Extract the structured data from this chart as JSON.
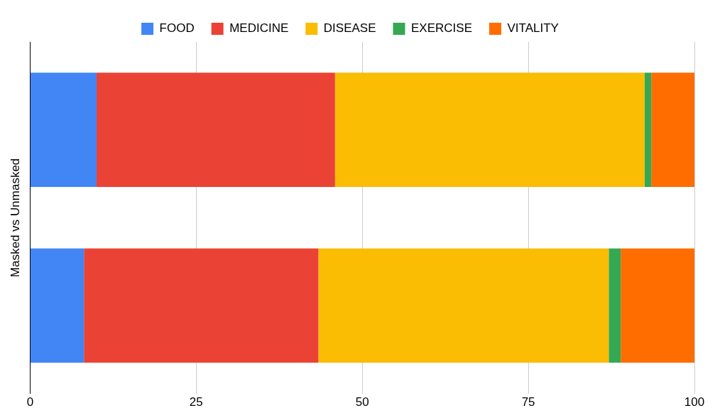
{
  "chart_data": {
    "type": "bar",
    "orientation": "horizontal",
    "stacked": true,
    "ylabel": "Masked vs Unmasked",
    "categories": [
      null,
      null
    ],
    "series": [
      {
        "name": "FOOD",
        "color": "#4285f4",
        "values": [
          10.0,
          8.1
        ]
      },
      {
        "name": "MEDICINE",
        "color": "#ea4335",
        "values": [
          35.9,
          35.3
        ]
      },
      {
        "name": "DISEASE",
        "color": "#fbbc04",
        "values": [
          46.6,
          43.7
        ]
      },
      {
        "name": "EXERCISE",
        "color": "#34a853",
        "values": [
          1.0,
          1.8
        ]
      },
      {
        "name": "VITALITY",
        "color": "#ff6d01",
        "values": [
          6.5,
          11.1
        ]
      }
    ],
    "xlim": [
      0,
      100
    ],
    "xticks": [
      0,
      25,
      50,
      75,
      100
    ],
    "grid": "x",
    "legend": "top"
  }
}
